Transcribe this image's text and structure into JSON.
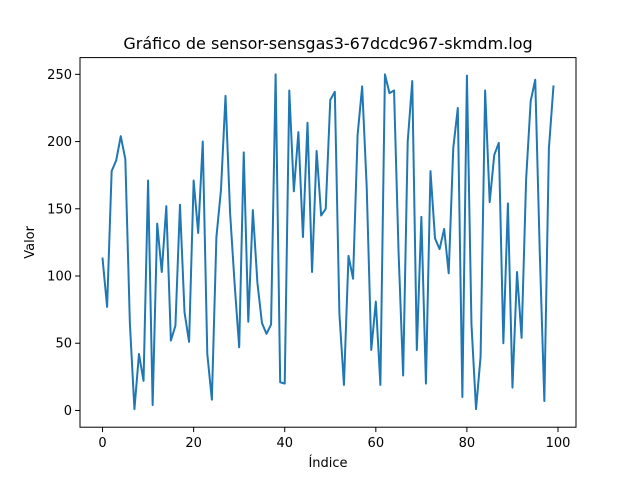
{
  "chart_data": {
    "type": "line",
    "title": "Gráfico de sensor-sensgas3-67dcdc967-skmdm.log",
    "xlabel": "Índice",
    "ylabel": "Valor",
    "xlim": [
      -4.95,
      103.95
    ],
    "ylim": [
      -12.45,
      262.45
    ],
    "xticks": [
      0,
      20,
      40,
      60,
      80,
      100
    ],
    "yticks": [
      0,
      50,
      100,
      150,
      200,
      250
    ],
    "grid": false,
    "line_color": "#1f77b4",
    "series": [
      {
        "x": [
          0,
          1,
          2,
          3,
          4,
          5,
          6,
          7,
          8,
          9,
          10,
          11,
          12,
          13,
          14,
          15,
          16,
          17,
          18,
          19,
          20,
          21,
          22,
          23,
          24,
          25,
          26,
          27,
          28,
          29,
          30,
          31,
          32,
          33,
          34,
          35,
          36,
          37,
          38,
          39,
          40,
          41,
          42,
          43,
          44,
          45,
          46,
          47,
          48,
          49,
          50,
          51,
          52,
          53,
          54,
          55,
          56,
          57,
          58,
          59,
          60,
          61,
          62,
          63,
          64,
          65,
          66,
          67,
          68,
          69,
          70,
          71,
          72,
          73,
          74,
          75,
          76,
          77,
          78,
          79,
          80,
          81,
          82,
          83,
          84,
          85,
          86,
          87,
          88,
          89,
          90,
          91,
          92,
          93,
          94,
          95,
          96,
          97,
          98,
          99
        ],
        "values": [
          113,
          77,
          178,
          186,
          204,
          187,
          65,
          1,
          42,
          22,
          171,
          4,
          139,
          103,
          152,
          52,
          63,
          153,
          73,
          51,
          171,
          132,
          200,
          42,
          8,
          129,
          164,
          234,
          147,
          94,
          47,
          192,
          66,
          149,
          95,
          65,
          57,
          64,
          250,
          21,
          20,
          238,
          163,
          207,
          129,
          214,
          103,
          193,
          145,
          150,
          231,
          237,
          72,
          19,
          115,
          98,
          205,
          241,
          166,
          45,
          81,
          19,
          250,
          236,
          238,
          117,
          26,
          200,
          245,
          45,
          144,
          20,
          178,
          128,
          120,
          135,
          102,
          195,
          225,
          10,
          249,
          64,
          1,
          40,
          238,
          155,
          190,
          199,
          50,
          154,
          17,
          103,
          54,
          172,
          230,
          246,
          117,
          7,
          195,
          241
        ]
      }
    ]
  }
}
